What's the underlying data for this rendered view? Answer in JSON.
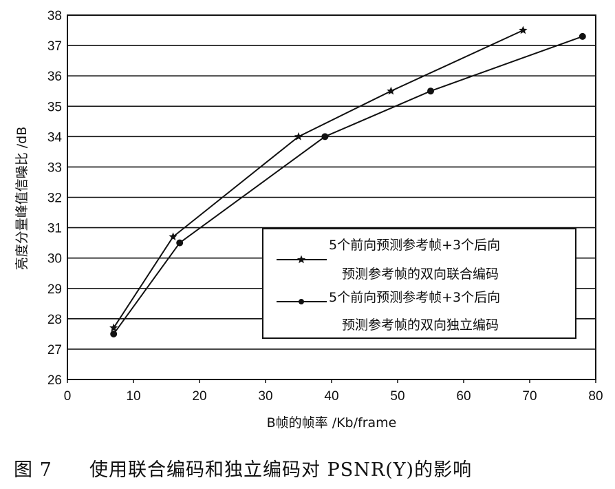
{
  "chart_data": {
    "type": "line",
    "title": "",
    "xlabel": "B帧的帧率 /Kb/frame",
    "ylabel": "亮度分量峰值信噪比 /dB",
    "xlim": [
      0,
      80
    ],
    "ylim": [
      26,
      38
    ],
    "x_ticks": [
      "0",
      "10",
      "20",
      "30",
      "40",
      "50",
      "60",
      "70",
      "80"
    ],
    "y_ticks": [
      "26",
      "27",
      "28",
      "29",
      "30",
      "31",
      "32",
      "33",
      "34",
      "35",
      "36",
      "37",
      "38"
    ],
    "grid": "horizontal",
    "legend_position": "lower-right",
    "series": [
      {
        "legend_line1": "5个前向预测参考帧+3个后向",
        "legend_line2": "预测参考帧的双向联合编码",
        "marker": "star",
        "x": [
          7,
          16,
          35,
          49,
          69
        ],
        "y": [
          27.7,
          30.7,
          34.0,
          35.5,
          37.5
        ]
      },
      {
        "legend_line1": "5个前向预测参考帧+3个后向",
        "legend_line2": "预测参考帧的双向独立编码",
        "marker": "circle",
        "x": [
          7,
          17,
          39,
          55,
          78
        ],
        "y": [
          27.5,
          30.5,
          34.0,
          35.5,
          37.3
        ]
      }
    ]
  },
  "caption": {
    "figure_no": "图 7",
    "text": "使用联合编码和独立编码对 PSNR(Y)的影响"
  },
  "colors": {
    "line": "#111111",
    "grid": "#111111",
    "background": "#ffffff"
  }
}
